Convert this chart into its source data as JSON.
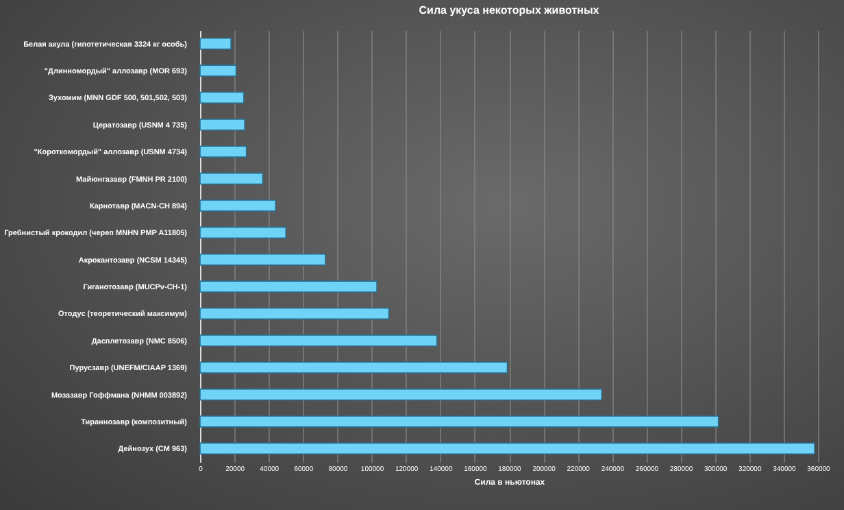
{
  "chart_data": {
    "type": "bar",
    "orientation": "horizontal",
    "title": "Сила укуса некоторых животных",
    "xlabel": "Сила в ньютонах",
    "categories": [
      "Белая акула (гипотетическая 3324 кг особь)",
      "\"Длинномордый\" аллозавр (MOR 693)",
      "Зухомим (MNN GDF 500, 501,502, 503)",
      "Цератозавр (USNM 4 735)",
      "\"Короткомордый\" аллозавр (USNM 4734)",
      "Майюнгазавр (FMNH PR 2100)",
      "Карнотавр (MACN-CH 894)",
      "Гребнистый крокодил (череп MNHN PMP A11805)",
      "Акрокантозавр (NCSM 14345)",
      "Гиганотозавр  (MUCPv-CH-1)",
      "Отодус (теоретический максимум)",
      "Дасплетозавр (NMC 8506)",
      "Пурусзавр (UNEFM/CIAAP 1369)",
      "Мозазавр Гоффмана (NHMM 003892)",
      "Тираннозавр (композитный)",
      "Дейнозух (CM 963)"
    ],
    "series": [
      {
        "color": "#6fd3f7",
        "values": [
          18000,
          21000,
          25500,
          26000,
          27000,
          36500,
          44000,
          50000,
          73000,
          103000,
          110000,
          138000,
          179000,
          234000,
          302000,
          358000
        ]
      }
    ],
    "xlim": [
      0,
      360000
    ],
    "xticks": [
      0,
      20000,
      40000,
      60000,
      80000,
      100000,
      120000,
      140000,
      160000,
      180000,
      200000,
      220000,
      240000,
      260000,
      280000,
      300000,
      320000,
      340000,
      360000
    ],
    "grid": "x"
  }
}
